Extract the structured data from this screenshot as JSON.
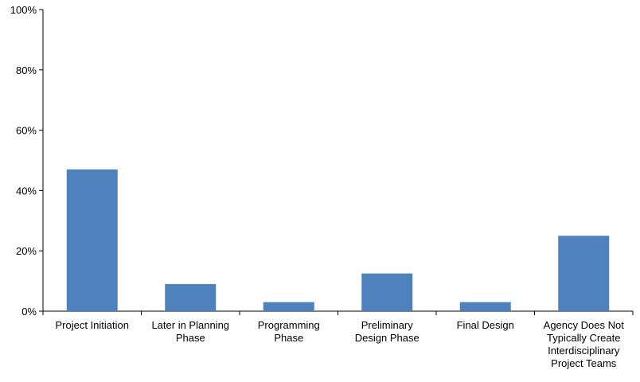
{
  "chart_data": {
    "type": "bar",
    "categories": [
      [
        "Project Initiation"
      ],
      [
        "Later in Planning",
        "Phase"
      ],
      [
        "Programming",
        "Phase"
      ],
      [
        "Preliminary",
        "Design Phase"
      ],
      [
        "Final Design"
      ],
      [
        "Agency Does Not",
        "Typically Create",
        "Interdisciplinary",
        "Project Teams"
      ]
    ],
    "values": [
      47,
      9,
      3,
      12.5,
      3,
      25
    ],
    "ylim": [
      0,
      100
    ],
    "yticks": [
      0,
      20,
      40,
      60,
      80,
      100
    ],
    "ytick_labels": [
      "0%",
      "20%",
      "40%",
      "60%",
      "80%",
      "100%"
    ],
    "bar_color": "#4f81bd",
    "grid": false,
    "legend": "none"
  }
}
